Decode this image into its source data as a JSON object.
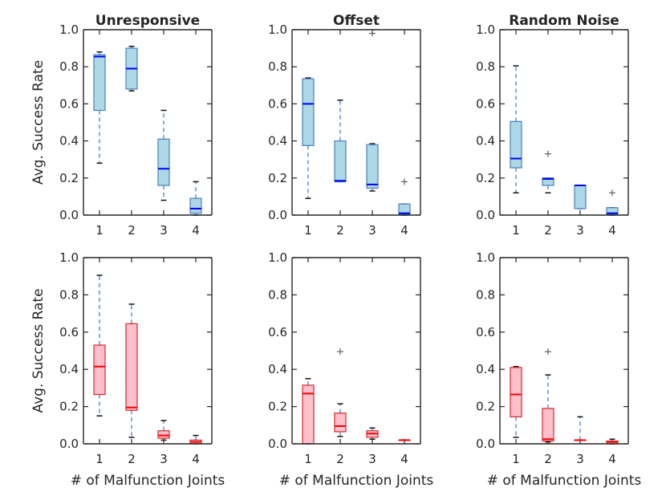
{
  "figure": {
    "ylabel": "Avg. Success Rate",
    "xlabel": "# of Malfunction Joints"
  },
  "chart_data": [
    {
      "type": "box",
      "title": "Unresponsive",
      "xlabel": "",
      "ylabel": "Avg. Success Rate",
      "categories": [
        "1",
        "2",
        "3",
        "4"
      ],
      "ylim": [
        0,
        1
      ],
      "yticks": [
        "0.0",
        "0.2",
        "0.4",
        "0.6",
        "0.8",
        "1.0"
      ],
      "boxes": [
        {
          "whislo": 0.28,
          "q1": 0.565,
          "med": 0.855,
          "q3": 0.865,
          "whishi": 0.88,
          "fliers": []
        },
        {
          "whislo": 0.67,
          "q1": 0.68,
          "med": 0.79,
          "q3": 0.9,
          "whishi": 0.91,
          "fliers": []
        },
        {
          "whislo": 0.08,
          "q1": 0.16,
          "med": 0.25,
          "q3": 0.41,
          "whishi": 0.565,
          "fliers": []
        },
        {
          "whislo": 0.0,
          "q1": 0.01,
          "med": 0.035,
          "q3": 0.09,
          "whishi": 0.18,
          "fliers": []
        }
      ],
      "box_fill": "#add8e6",
      "box_edge": "#4a7fc1",
      "median_color": "#0000ff"
    },
    {
      "type": "box",
      "title": "Offset",
      "xlabel": "",
      "ylabel": "",
      "categories": [
        "1",
        "2",
        "3",
        "4"
      ],
      "ylim": [
        0,
        1
      ],
      "yticks": [
        "0.0",
        "0.2",
        "0.4",
        "0.6",
        "0.8",
        "1.0"
      ],
      "boxes": [
        {
          "whislo": 0.09,
          "q1": 0.375,
          "med": 0.6,
          "q3": 0.735,
          "whishi": 0.74,
          "fliers": []
        },
        {
          "whislo": 0.18,
          "q1": 0.18,
          "med": 0.185,
          "q3": 0.4,
          "whishi": 0.62,
          "fliers": []
        },
        {
          "whislo": 0.13,
          "q1": 0.145,
          "med": 0.165,
          "q3": 0.38,
          "whishi": 0.385,
          "fliers": [
            0.98
          ]
        },
        {
          "whislo": 0.0,
          "q1": 0.005,
          "med": 0.01,
          "q3": 0.06,
          "whishi": 0.06,
          "fliers": [
            0.18
          ]
        }
      ],
      "box_fill": "#add8e6",
      "box_edge": "#4a7fc1",
      "median_color": "#0000ff"
    },
    {
      "type": "box",
      "title": "Random Noise",
      "xlabel": "",
      "ylabel": "",
      "categories": [
        "1",
        "2",
        "3",
        "4"
      ],
      "ylim": [
        0,
        1
      ],
      "yticks": [
        "0.0",
        "0.2",
        "0.4",
        "0.6",
        "0.8",
        "1.0"
      ],
      "boxes": [
        {
          "whislo": 0.12,
          "q1": 0.255,
          "med": 0.305,
          "q3": 0.505,
          "whishi": 0.805,
          "fliers": []
        },
        {
          "whislo": 0.12,
          "q1": 0.16,
          "med": 0.195,
          "q3": 0.2,
          "whishi": 0.2,
          "fliers": [
            0.33
          ]
        },
        {
          "whislo": 0.035,
          "q1": 0.035,
          "med": 0.16,
          "q3": 0.16,
          "whishi": 0.16,
          "fliers": []
        },
        {
          "whislo": 0.0,
          "q1": 0.005,
          "med": 0.01,
          "q3": 0.04,
          "whishi": 0.04,
          "fliers": [
            0.12
          ]
        }
      ],
      "box_fill": "#add8e6",
      "box_edge": "#4a7fc1",
      "median_color": "#0000ff"
    },
    {
      "type": "box",
      "title": "",
      "xlabel": "# of Malfunction Joints",
      "ylabel": "Avg. Success Rate",
      "categories": [
        "1",
        "2",
        "3",
        "4"
      ],
      "ylim": [
        0,
        1
      ],
      "yticks": [
        "0.0",
        "0.2",
        "0.4",
        "0.6",
        "0.8",
        "1.0"
      ],
      "boxes": [
        {
          "whislo": 0.15,
          "q1": 0.265,
          "med": 0.415,
          "q3": 0.53,
          "whishi": 0.905,
          "fliers": []
        },
        {
          "whislo": 0.035,
          "q1": 0.18,
          "med": 0.195,
          "q3": 0.645,
          "whishi": 0.75,
          "fliers": []
        },
        {
          "whislo": 0.02,
          "q1": 0.03,
          "med": 0.045,
          "q3": 0.07,
          "whishi": 0.125,
          "fliers": []
        },
        {
          "whislo": 0.0,
          "q1": 0.0,
          "med": 0.01,
          "q3": 0.02,
          "whishi": 0.045,
          "fliers": []
        }
      ],
      "box_fill": "#ffc0cb",
      "box_edge": "#d62728",
      "median_color": "#ff0000"
    },
    {
      "type": "box",
      "title": "",
      "xlabel": "# of Malfunction Joints",
      "ylabel": "",
      "categories": [
        "1",
        "2",
        "3",
        "4"
      ],
      "ylim": [
        0,
        1
      ],
      "yticks": [
        "0.0",
        "0.2",
        "0.4",
        "0.6",
        "0.8",
        "1.0"
      ],
      "boxes": [
        {
          "whislo": 0.0,
          "q1": 0.0,
          "med": 0.27,
          "q3": 0.315,
          "whishi": 0.35,
          "fliers": []
        },
        {
          "whislo": 0.04,
          "q1": 0.065,
          "med": 0.095,
          "q3": 0.165,
          "whishi": 0.215,
          "fliers": [
            0.495
          ]
        },
        {
          "whislo": 0.025,
          "q1": 0.035,
          "med": 0.055,
          "q3": 0.07,
          "whishi": 0.085,
          "fliers": []
        },
        {
          "whislo": 0.02,
          "q1": 0.02,
          "med": 0.02,
          "q3": 0.02,
          "whishi": 0.02,
          "fliers": []
        }
      ],
      "box_fill": "#ffc0cb",
      "box_edge": "#d62728",
      "median_color": "#ff0000"
    },
    {
      "type": "box",
      "title": "",
      "xlabel": "# of Malfunction Joints",
      "ylabel": "",
      "categories": [
        "1",
        "2",
        "3",
        "4"
      ],
      "ylim": [
        0,
        1
      ],
      "yticks": [
        "0.0",
        "0.2",
        "0.4",
        "0.6",
        "0.8",
        "1.0"
      ],
      "boxes": [
        {
          "whislo": 0.035,
          "q1": 0.145,
          "med": 0.265,
          "q3": 0.41,
          "whishi": 0.415,
          "fliers": []
        },
        {
          "whislo": 0.01,
          "q1": 0.015,
          "med": 0.025,
          "q3": 0.19,
          "whishi": 0.37,
          "fliers": [
            0.495
          ]
        },
        {
          "whislo": 0.02,
          "q1": 0.02,
          "med": 0.02,
          "q3": 0.02,
          "whishi": 0.145,
          "fliers": []
        },
        {
          "whislo": 0.0,
          "q1": 0.0,
          "med": 0.01,
          "q3": 0.015,
          "whishi": 0.025,
          "fliers": []
        }
      ],
      "box_fill": "#ffc0cb",
      "box_edge": "#d62728",
      "median_color": "#ff0000"
    }
  ]
}
